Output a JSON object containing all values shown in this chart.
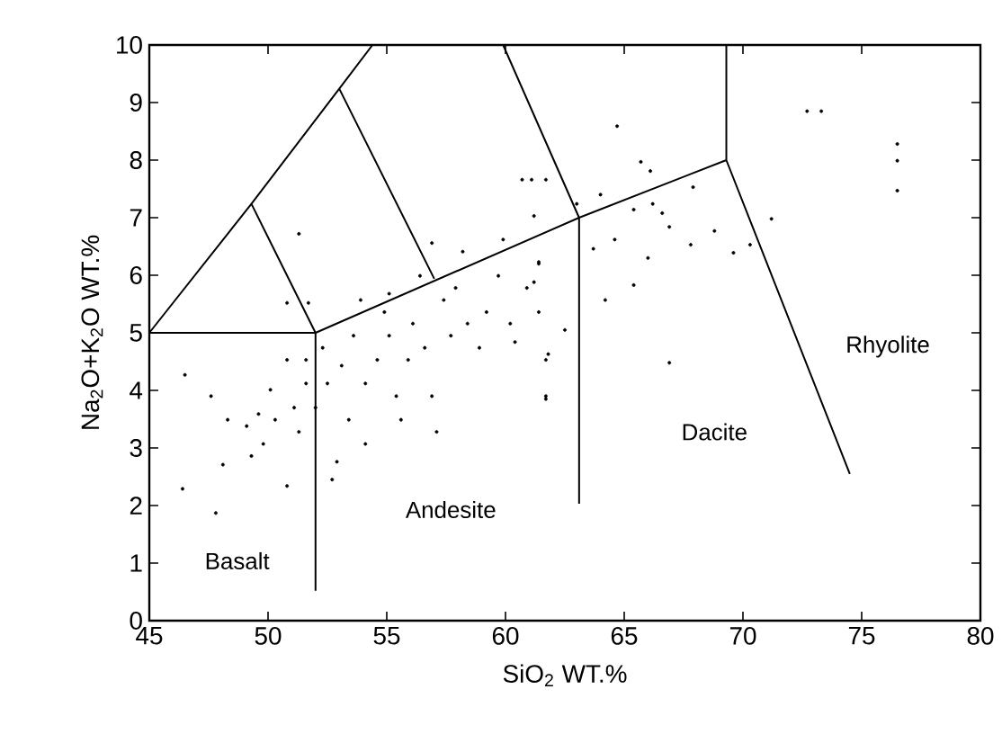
{
  "chart_data": {
    "type": "scatter",
    "xlabel": "SiO$_{2}$   WT.%",
    "ylabel": "Na$_{2}$O+K$_{2}$O   WT.%",
    "xlim": [
      45,
      80
    ],
    "ylim": [
      0,
      10
    ],
    "xticks": [
      45,
      50,
      55,
      60,
      65,
      70,
      75,
      80
    ],
    "yticks": [
      0,
      1,
      2,
      3,
      4,
      5,
      6,
      7,
      8,
      9,
      10
    ],
    "series": [
      {
        "color": "#000000",
        "marker": "circle",
        "x": [
          46.5,
          47.8,
          46.4,
          47.6,
          48.1,
          48.3,
          49.1,
          49.3,
          49.6,
          50.1,
          49.8,
          50.3,
          50.8,
          50.8,
          51.1,
          51.6,
          51.3,
          51.6,
          52.0,
          50.8,
          51.3,
          51.7,
          52.3,
          52.5,
          52.9,
          52.7,
          53.1,
          53.4,
          53.6,
          53.9,
          54.1,
          54.1,
          54.6,
          54.9,
          55.1,
          55.1,
          55.4,
          55.6,
          55.9,
          56.1,
          56.4,
          56.6,
          56.9,
          57.1,
          57.4,
          57.7,
          57.9,
          58.2,
          58.4,
          58.9,
          59.2,
          59.7,
          59.9,
          60.2,
          60.4,
          60.7,
          60.9,
          61.2,
          61.4,
          61.4,
          61.7,
          61.7,
          56.9,
          64.7,
          65.7,
          66.1,
          61.7,
          61.1,
          64.0,
          67.9,
          65.4,
          66.2,
          66.6,
          66.9,
          68.8,
          67.8,
          69.6,
          70.3,
          71.2,
          72.7,
          73.3,
          76.5,
          76.5,
          76.5,
          64.6,
          63.7,
          66.0,
          65.4,
          64.2,
          66.9,
          61.7,
          62.5,
          61.8,
          61.4,
          61.2,
          63.0
        ],
        "values": [
          4.27,
          1.87,
          2.29,
          3.9,
          2.71,
          3.49,
          3.38,
          2.86,
          3.59,
          4.01,
          3.07,
          3.49,
          4.53,
          2.34,
          3.7,
          4.12,
          3.28,
          4.53,
          3.7,
          5.52,
          6.72,
          5.52,
          4.74,
          4.12,
          2.76,
          2.45,
          4.43,
          3.49,
          4.95,
          5.57,
          4.12,
          3.07,
          4.53,
          5.36,
          5.68,
          4.95,
          3.9,
          3.49,
          4.53,
          5.16,
          5.99,
          4.74,
          3.9,
          3.28,
          5.57,
          4.95,
          5.78,
          6.41,
          5.16,
          4.74,
          5.36,
          5.99,
          6.62,
          5.16,
          4.84,
          7.66,
          5.78,
          7.03,
          6.2,
          5.36,
          3.9,
          4.53,
          6.56,
          8.59,
          7.97,
          7.81,
          7.66,
          7.66,
          7.4,
          7.53,
          7.14,
          7.24,
          7.08,
          6.84,
          6.77,
          6.53,
          6.39,
          6.53,
          6.98,
          8.85,
          8.85,
          8.28,
          7.99,
          7.47,
          6.62,
          6.46,
          6.3,
          5.83,
          5.57,
          4.48,
          3.85,
          5.05,
          4.63,
          6.23,
          5.88,
          7.24
        ]
      },
      {
        "type": "line",
        "color": "#000000",
        "marker": "none",
        "x": [
          52,
          52,
          null,
          54.4,
          53.0,
          49.3,
          45,
          52,
          63.1,
          69.3,
          74.5,
          null,
          49.3,
          52,
          null,
          53.0,
          57.0,
          null,
          59.9,
          63.1,
          63.1,
          null,
          69.3,
          69.3
        ],
        "values": [
          0.52,
          5,
          null,
          10,
          9.24,
          7.24,
          5,
          5,
          7.0,
          8.0,
          2.55,
          null,
          7.24,
          5,
          null,
          9.24,
          5.94,
          null,
          10,
          7.0,
          2.03,
          null,
          10,
          8.0
        ]
      }
    ],
    "annotations": [
      "Basalt",
      "Andesite",
      "Dacite",
      "Rhyolite"
    ]
  }
}
